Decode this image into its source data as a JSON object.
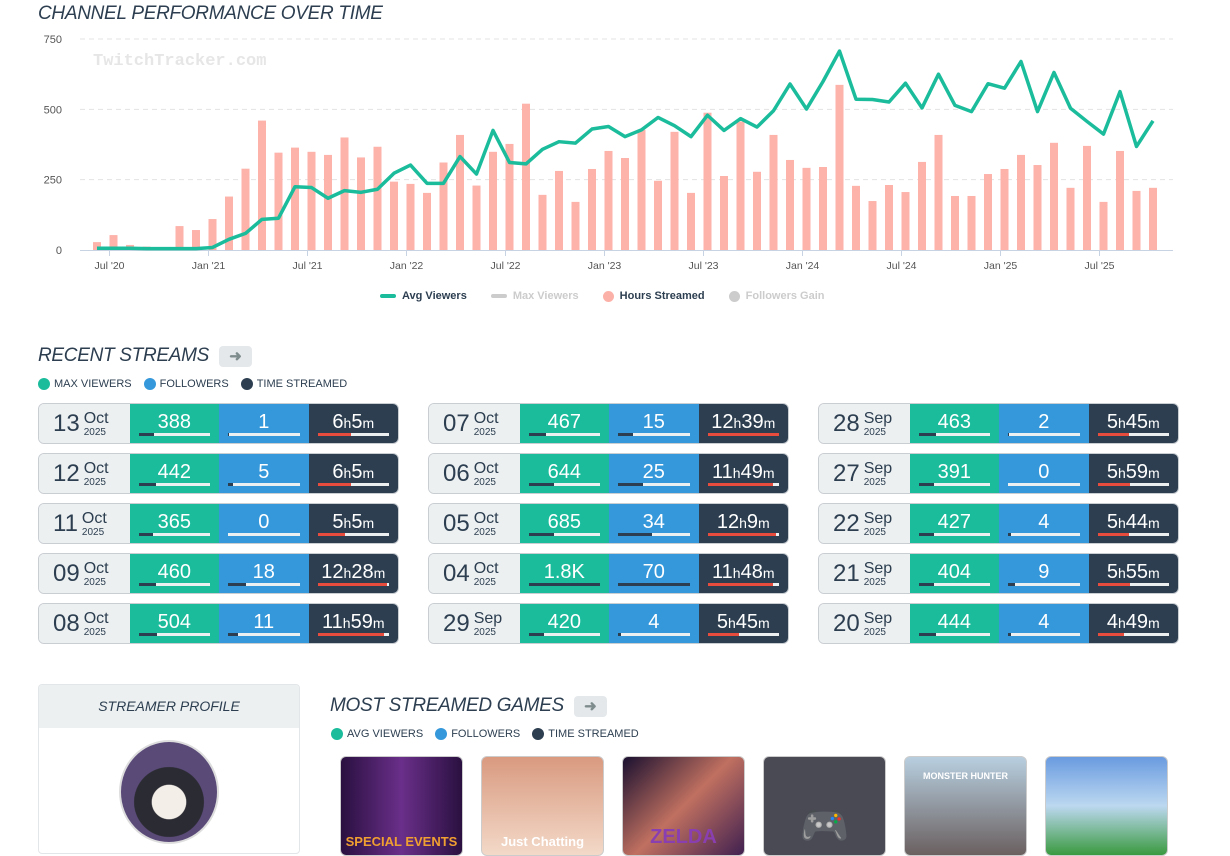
{
  "chart_section": {
    "title": "CHANNEL PERFORMANCE OVER TIME",
    "watermark": "TwitchTracker.com"
  },
  "chart_data": {
    "type": "bar+line",
    "title": "CHANNEL PERFORMANCE OVER TIME",
    "ylim": [
      0,
      750
    ],
    "yticks": [
      0,
      250,
      500,
      750
    ],
    "x_start": "Jun 2020",
    "xtick_labels": [
      "Jul '20",
      "Jan '21",
      "Jul '21",
      "Jan '22",
      "Jul '22",
      "Jan '23",
      "Jul '23",
      "Jan '24",
      "Jul '24",
      "Jan '25",
      "Jul '25"
    ],
    "xtick_month_index": [
      1,
      7,
      13,
      19,
      25,
      31,
      37,
      43,
      49,
      55,
      61
    ],
    "legend": [
      {
        "name": "Avg Viewers",
        "color": "#1abc9c",
        "active": true,
        "kind": "line"
      },
      {
        "name": "Max Viewers",
        "color": "#cccccc",
        "active": false,
        "kind": "line"
      },
      {
        "name": "Hours Streamed",
        "color": "#fcb1a8",
        "active": true,
        "kind": "dot"
      },
      {
        "name": "Followers Gain",
        "color": "#cccccc",
        "active": false,
        "kind": "dot"
      }
    ],
    "series": [
      {
        "name": "Hours Streamed",
        "type": "bar",
        "color": "#fdb2aa",
        "values": [
          28,
          53,
          18,
          12,
          5,
          85,
          71,
          110,
          190,
          289,
          460,
          346,
          364,
          349,
          338,
          400,
          329,
          367,
          243,
          235,
          203,
          311,
          409,
          229,
          349,
          377,
          520,
          196,
          281,
          171,
          288,
          352,
          327,
          427,
          246,
          420,
          203,
          488,
          263,
          457,
          278,
          409,
          320,
          292,
          295,
          587,
          228,
          174,
          231,
          206,
          313,
          409,
          192,
          192,
          270,
          288,
          338,
          302,
          381,
          221,
          370,
          171,
          352,
          210,
          221
        ]
      },
      {
        "name": "Avg Viewers",
        "type": "line",
        "color": "#1abc9c",
        "values": [
          6,
          6,
          6,
          5,
          5,
          5,
          5,
          9,
          38,
          59,
          109,
          113,
          225,
          222,
          184,
          211,
          205,
          216,
          273,
          302,
          237,
          237,
          332,
          270,
          425,
          311,
          306,
          358,
          385,
          380,
          430,
          439,
          403,
          427,
          471,
          442,
          403,
          479,
          425,
          467,
          437,
          495,
          590,
          501,
          599,
          707,
          536,
          535,
          526,
          593,
          505,
          625,
          514,
          492,
          591,
          575,
          670,
          492,
          631,
          504,
          457,
          412,
          563,
          368,
          459
        ]
      }
    ]
  },
  "recent": {
    "title": "RECENT STREAMS",
    "keys": [
      "MAX VIEWERS",
      "FOLLOWERS",
      "TIME STREAMED"
    ],
    "streams": [
      {
        "day": "13",
        "month": "Oct",
        "year": "2025",
        "viewers": "388",
        "followers": "1",
        "h": "6",
        "m": "5",
        "vf": 0.21,
        "ff": 0.02,
        "tf": 0.47
      },
      {
        "day": "12",
        "month": "Oct",
        "year": "2025",
        "viewers": "442",
        "followers": "5",
        "h": "6",
        "m": "5",
        "vf": 0.24,
        "ff": 0.07,
        "tf": 0.47
      },
      {
        "day": "11",
        "month": "Oct",
        "year": "2025",
        "viewers": "365",
        "followers": "0",
        "h": "5",
        "m": "5",
        "vf": 0.2,
        "ff": 0,
        "tf": 0.39
      },
      {
        "day": "09",
        "month": "Oct",
        "year": "2025",
        "viewers": "460",
        "followers": "18",
        "h": "12",
        "m": "28",
        "vf": 0.25,
        "ff": 0.25,
        "tf": 0.97
      },
      {
        "day": "08",
        "month": "Oct",
        "year": "2025",
        "viewers": "504",
        "followers": "11",
        "h": "11",
        "m": "59",
        "vf": 0.26,
        "ff": 0.14,
        "tf": 0.93
      },
      {
        "day": "07",
        "month": "Oct",
        "year": "2025",
        "viewers": "467",
        "followers": "15",
        "h": "12",
        "m": "39",
        "vf": 0.25,
        "ff": 0.21,
        "tf": 1.0
      },
      {
        "day": "06",
        "month": "Oct",
        "year": "2025",
        "viewers": "644",
        "followers": "25",
        "h": "11",
        "m": "49",
        "vf": 0.35,
        "ff": 0.35,
        "tf": 0.92
      },
      {
        "day": "05",
        "month": "Oct",
        "year": "2025",
        "viewers": "685",
        "followers": "34",
        "h": "12",
        "m": "9",
        "vf": 0.36,
        "ff": 0.47,
        "tf": 0.96
      },
      {
        "day": "04",
        "month": "Oct",
        "year": "2025",
        "viewers": "1.8K",
        "followers": "70",
        "h": "11",
        "m": "48",
        "vf": 1.0,
        "ff": 1.0,
        "tf": 0.92
      },
      {
        "day": "29",
        "month": "Sep",
        "year": "2025",
        "viewers": "420",
        "followers": "4",
        "h": "5",
        "m": "45",
        "vf": 0.22,
        "ff": 0.04,
        "tf": 0.44
      },
      {
        "day": "28",
        "month": "Sep",
        "year": "2025",
        "viewers": "463",
        "followers": "2",
        "h": "5",
        "m": "45",
        "vf": 0.25,
        "ff": 0.02,
        "tf": 0.44
      },
      {
        "day": "27",
        "month": "Sep",
        "year": "2025",
        "viewers": "391",
        "followers": "0",
        "h": "5",
        "m": "59",
        "vf": 0.21,
        "ff": 0,
        "tf": 0.46
      },
      {
        "day": "22",
        "month": "Sep",
        "year": "2025",
        "viewers": "427",
        "followers": "4",
        "h": "5",
        "m": "44",
        "vf": 0.22,
        "ff": 0.04,
        "tf": 0.44
      },
      {
        "day": "21",
        "month": "Sep",
        "year": "2025",
        "viewers": "404",
        "followers": "9",
        "h": "5",
        "m": "55",
        "vf": 0.21,
        "ff": 0.1,
        "tf": 0.46
      },
      {
        "day": "20",
        "month": "Sep",
        "year": "2025",
        "viewers": "444",
        "followers": "4",
        "h": "4",
        "m": "49",
        "vf": 0.24,
        "ff": 0.04,
        "tf": 0.37
      }
    ]
  },
  "profile": {
    "title": "STREAMER PROFILE"
  },
  "games": {
    "title": "MOST STREAMED GAMES",
    "keys": [
      "AVG VIEWERS",
      "FOLLOWERS",
      "TIME STREAMED"
    ],
    "covers": [
      {
        "text": "SPECIAL EVENTS",
        "bg": "linear-gradient(90deg,#2a1040,#6a2f8a,#2a1040)",
        "color": "#f0a030"
      },
      {
        "text": "Just Chatting",
        "bg": "linear-gradient(#d99a80,#f3d9c8)",
        "color": "#fff"
      },
      {
        "text": "ZELDA",
        "bg": "linear-gradient(135deg,#1a1030,#c07060,#402050)",
        "color": "#8a3fb0"
      },
      {
        "text": "",
        "bg": "#4a4a55",
        "color": "#888"
      },
      {
        "text": "MONSTER HUNTER",
        "bg": "linear-gradient(#b8cfe0,#6a6060)",
        "color": "#fff"
      },
      {
        "text": "",
        "bg": "linear-gradient(#6a9be0,#bcd8f0,#3a9a40)",
        "color": "#fff"
      }
    ]
  },
  "units": {
    "h": "h",
    "m": "m"
  }
}
